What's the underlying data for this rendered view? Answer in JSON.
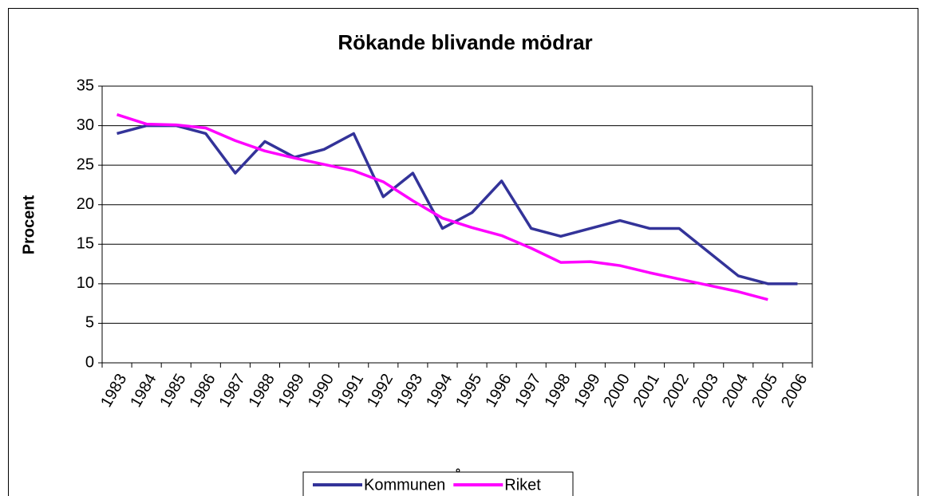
{
  "chart_data": {
    "type": "line",
    "title": "Rökande blivande mödrar",
    "y_label": "Procent",
    "x_label": "år",
    "categories": [
      "1983",
      "1984",
      "1985",
      "1986",
      "1987",
      "1988",
      "1989",
      "1990",
      "1991",
      "1992",
      "1993",
      "1994",
      "1995",
      "1996",
      "1997",
      "1998",
      "1999",
      "2000",
      "2001",
      "2002",
      "2003",
      "2004",
      "2005",
      "2006"
    ],
    "series": [
      {
        "name": "Kommunen",
        "color": "#333399",
        "values": [
          29,
          30,
          30,
          29,
          24,
          28,
          26,
          27,
          29,
          21,
          24,
          17,
          19,
          23,
          17,
          16,
          17,
          18,
          17,
          17,
          14,
          11,
          10,
          10
        ]
      },
      {
        "name": "Riket",
        "color": "#ff00ff",
        "values": [
          31.4,
          30.2,
          30.1,
          29.7,
          28.1,
          26.8,
          25.9,
          25.1,
          24.3,
          22.9,
          20.5,
          18.3,
          17.1,
          16.1,
          14.5,
          12.7,
          12.8,
          12.3,
          11.4,
          10.6,
          9.8,
          9.0,
          8.0,
          null
        ]
      }
    ],
    "ylim": [
      0,
      35
    ],
    "yticks": [
      0,
      5,
      10,
      15,
      20,
      25,
      30,
      35
    ],
    "grid": true,
    "legend": "bottom"
  }
}
